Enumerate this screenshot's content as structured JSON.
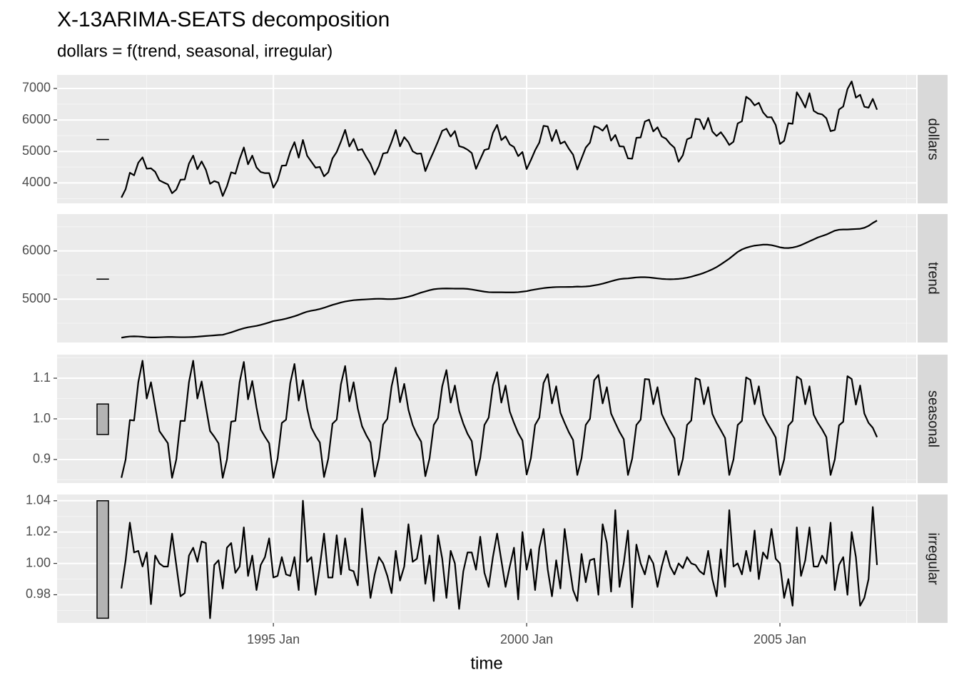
{
  "chart_data": {
    "type": "line",
    "title": "X-13ARIMA-SEATS decomposition",
    "subtitle": "dollars = f(trend, seasonal, irregular)",
    "xlabel": "time",
    "color": "#000000",
    "grid": true,
    "xlim": [
      1990.73,
      2007.69
    ],
    "xticks": [
      {
        "value": 1995,
        "label": "1995 Jan"
      },
      {
        "value": 2000,
        "label": "2000 Jan"
      },
      {
        "value": 2005,
        "label": "2005 Jan"
      }
    ],
    "x": [
      "1992 Jan",
      "1992 Feb",
      "1992 Mar",
      "1992 Apr",
      "1992 May",
      "1992 Jun",
      "1992 Jul",
      "1992 Aug",
      "1992 Sep",
      "1992 Oct",
      "1992 Nov",
      "1992 Dec",
      "1993 Jan",
      "1993 Feb",
      "1993 Mar",
      "1993 Apr",
      "1993 May",
      "1993 Jun",
      "1993 Jul",
      "1993 Aug",
      "1993 Sep",
      "1993 Oct",
      "1993 Nov",
      "1993 Dec",
      "1994 Jan",
      "1994 Feb",
      "1994 Mar",
      "1994 Apr",
      "1994 May",
      "1994 Jun",
      "1994 Jul",
      "1994 Aug",
      "1994 Sep",
      "1994 Oct",
      "1994 Nov",
      "1994 Dec",
      "1995 Jan",
      "1995 Feb",
      "1995 Mar",
      "1995 Apr",
      "1995 May",
      "1995 Jun",
      "1995 Jul",
      "1995 Aug",
      "1995 Sep",
      "1995 Oct",
      "1995 Nov",
      "1995 Dec",
      "1996 Jan",
      "1996 Feb",
      "1996 Mar",
      "1996 Apr",
      "1996 May",
      "1996 Jun",
      "1996 Jul",
      "1996 Aug",
      "1996 Sep",
      "1996 Oct",
      "1996 Nov",
      "1996 Dec",
      "1997 Jan",
      "1997 Feb",
      "1997 Mar",
      "1997 Apr",
      "1997 May",
      "1997 Jun",
      "1997 Jul",
      "1997 Aug",
      "1997 Sep",
      "1997 Oct",
      "1997 Nov",
      "1997 Dec",
      "1998 Jan",
      "1998 Feb",
      "1998 Mar",
      "1998 Apr",
      "1998 May",
      "1998 Jun",
      "1998 Jul",
      "1998 Aug",
      "1998 Sep",
      "1998 Oct",
      "1998 Nov",
      "1998 Dec",
      "1999 Jan",
      "1999 Feb",
      "1999 Mar",
      "1999 Apr",
      "1999 May",
      "1999 Jun",
      "1999 Jul",
      "1999 Aug",
      "1999 Sep",
      "1999 Oct",
      "1999 Nov",
      "1999 Dec",
      "2000 Jan",
      "2000 Feb",
      "2000 Mar",
      "2000 Apr",
      "2000 May",
      "2000 Jun",
      "2000 Jul",
      "2000 Aug",
      "2000 Sep",
      "2000 Oct",
      "2000 Nov",
      "2000 Dec",
      "2001 Jan",
      "2001 Feb",
      "2001 Mar",
      "2001 Apr",
      "2001 May",
      "2001 Jun",
      "2001 Jul",
      "2001 Aug",
      "2001 Sep",
      "2001 Oct",
      "2001 Nov",
      "2001 Dec",
      "2002 Jan",
      "2002 Feb",
      "2002 Mar",
      "2002 Apr",
      "2002 May",
      "2002 Jun",
      "2002 Jul",
      "2002 Aug",
      "2002 Sep",
      "2002 Oct",
      "2002 Nov",
      "2002 Dec",
      "2003 Jan",
      "2003 Feb",
      "2003 Mar",
      "2003 Apr",
      "2003 May",
      "2003 Jun",
      "2003 Jul",
      "2003 Aug",
      "2003 Sep",
      "2003 Oct",
      "2003 Nov",
      "2003 Dec",
      "2004 Jan",
      "2004 Feb",
      "2004 Mar",
      "2004 Apr",
      "2004 May",
      "2004 Jun",
      "2004 Jul",
      "2004 Aug",
      "2004 Sep",
      "2004 Oct",
      "2004 Nov",
      "2004 Dec",
      "2005 Jan",
      "2005 Feb",
      "2005 Mar",
      "2005 Apr",
      "2005 May",
      "2005 Jun",
      "2005 Jul",
      "2005 Aug",
      "2005 Sep",
      "2005 Oct",
      "2005 Nov",
      "2005 Dec",
      "2006 Jan",
      "2006 Feb",
      "2006 Mar",
      "2006 Apr",
      "2006 May",
      "2006 Jun",
      "2006 Jul",
      "2006 Aug",
      "2006 Sep",
      "2006 Oct",
      "2006 Nov",
      "2006 Dec"
    ],
    "panels": [
      {
        "name": "dollars",
        "ylim": [
          3350,
          7430
        ],
        "yticks": [
          4000,
          5000,
          6000,
          7000
        ],
        "values": [
          3534,
          3801,
          4322,
          4241,
          4642,
          4811,
          4451,
          4464,
          4353,
          4082,
          4014,
          3954,
          3672,
          3787,
          4101,
          4109,
          4614,
          4866,
          4435,
          4682,
          4419,
          3971,
          4057,
          4008,
          3584,
          3895,
          4336,
          4292,
          4754,
          5125,
          4590,
          4866,
          4491,
          4345,
          4310,
          4312,
          3851,
          4080,
          4547,
          4554,
          4987,
          5293,
          4802,
          5364,
          4863,
          4674,
          4483,
          4508,
          4209,
          4336,
          4778,
          4983,
          5312,
          5683,
          5157,
          5399,
          5038,
          5072,
          4824,
          4606,
          4264,
          4540,
          4935,
          4960,
          5297,
          5681,
          5163,
          5452,
          5290,
          5004,
          4926,
          4935,
          4375,
          4705,
          5004,
          5319,
          5655,
          5720,
          5472,
          5646,
          5168,
          5129,
          5054,
          4948,
          4446,
          4748,
          5047,
          5083,
          5586,
          5842,
          5359,
          5478,
          5222,
          5140,
          4851,
          4980,
          4439,
          4724,
          5035,
          5283,
          5813,
          5791,
          5330,
          5681,
          5246,
          5314,
          5085,
          4897,
          4425,
          4776,
          5121,
          5281,
          5804,
          5755,
          5660,
          5837,
          5342,
          5523,
          5163,
          5154,
          4779,
          4770,
          5432,
          5444,
          5948,
          6009,
          5636,
          5766,
          5474,
          5404,
          5239,
          5119,
          4672,
          4877,
          5384,
          5443,
          6033,
          6014,
          5705,
          6063,
          5630,
          5490,
          5610,
          5425,
          5205,
          5308,
          5890,
          5958,
          6737,
          6641,
          6463,
          6544,
          6241,
          6087,
          6086,
          5837,
          5237,
          5336,
          5897,
          5877,
          6878,
          6660,
          6395,
          6850,
          6290,
          6205,
          6177,
          6055,
          5643,
          5680,
          6331,
          6426,
          6979,
          7224,
          6708,
          6801,
          6420,
          6390,
          6667,
          6325
        ]
      },
      {
        "name": "trend",
        "ylim": [
          4100,
          6765
        ],
        "yticks": [
          5000,
          6000
        ],
        "values": [
          4200,
          4215,
          4225,
          4228,
          4225,
          4218,
          4210,
          4205,
          4205,
          4208,
          4212,
          4215,
          4215,
          4212,
          4210,
          4210,
          4212,
          4215,
          4220,
          4228,
          4235,
          4242,
          4248,
          4255,
          4260,
          4285,
          4310,
          4340,
          4370,
          4395,
          4415,
          4430,
          4445,
          4465,
          4490,
          4515,
          4545,
          4560,
          4575,
          4595,
          4620,
          4645,
          4675,
          4710,
          4740,
          4760,
          4775,
          4795,
          4820,
          4850,
          4880,
          4905,
          4930,
          4950,
          4965,
          4978,
          4985,
          4990,
          4995,
          5000,
          5005,
          5008,
          5005,
          5000,
          5000,
          5005,
          5015,
          5030,
          5050,
          5075,
          5105,
          5135,
          5160,
          5185,
          5205,
          5215,
          5220,
          5222,
          5220,
          5218,
          5218,
          5218,
          5212,
          5200,
          5185,
          5170,
          5155,
          5145,
          5142,
          5142,
          5142,
          5140,
          5140,
          5140,
          5145,
          5155,
          5165,
          5185,
          5200,
          5215,
          5228,
          5238,
          5245,
          5250,
          5252,
          5252,
          5253,
          5255,
          5260,
          5258,
          5262,
          5270,
          5285,
          5300,
          5320,
          5345,
          5370,
          5395,
          5415,
          5425,
          5430,
          5440,
          5450,
          5455,
          5455,
          5450,
          5440,
          5430,
          5420,
          5415,
          5412,
          5415,
          5420,
          5430,
          5445,
          5465,
          5490,
          5515,
          5545,
          5580,
          5620,
          5665,
          5720,
          5780,
          5840,
          5910,
          5980,
          6030,
          6065,
          6090,
          6110,
          6120,
          6130,
          6130,
          6120,
          6100,
          6075,
          6062,
          6060,
          6070,
          6090,
          6120,
          6160,
          6200,
          6240,
          6280,
          6310,
          6340,
          6380,
          6420,
          6440,
          6445,
          6445,
          6450,
          6455,
          6460,
          6480,
          6520,
          6580,
          6630
        ]
      },
      {
        "name": "seasonal",
        "ylim": [
          0.842,
          1.158
        ],
        "yticks": [
          0.9,
          {
            "value": 1,
            "label": "1.0"
          },
          1.1
        ],
        "values": [
          0.855,
          0.9,
          0.997,
          0.996,
          1.09,
          1.143,
          1.05,
          1.09,
          1.03,
          0.97,
          0.955,
          0.94,
          0.855,
          0.9,
          0.995,
          0.995,
          1.09,
          1.143,
          1.05,
          1.092,
          1.03,
          0.97,
          0.956,
          0.94,
          0.855,
          0.9,
          0.993,
          0.995,
          1.09,
          1.14,
          1.048,
          1.093,
          1.028,
          0.974,
          0.956,
          0.94,
          0.855,
          0.902,
          0.99,
          0.998,
          1.088,
          1.135,
          1.045,
          1.095,
          1.025,
          0.978,
          0.958,
          0.942,
          0.857,
          0.902,
          0.988,
          0.998,
          1.085,
          1.13,
          1.043,
          1.09,
          1.025,
          0.982,
          0.96,
          0.942,
          0.858,
          0.903,
          0.986,
          1.0,
          1.08,
          1.126,
          1.041,
          1.086,
          1.022,
          0.985,
          0.962,
          0.944,
          0.859,
          0.903,
          0.985,
          1.002,
          1.08,
          1.12,
          1.04,
          1.082,
          1.02,
          0.988,
          0.963,
          0.945,
          0.861,
          0.903,
          0.985,
          1.003,
          1.082,
          1.115,
          1.04,
          1.082,
          1.018,
          0.99,
          0.965,
          0.947,
          0.863,
          0.903,
          0.985,
          1.003,
          1.088,
          1.11,
          1.038,
          1.08,
          1.015,
          0.99,
          0.967,
          0.948,
          0.862,
          0.903,
          0.985,
          1.0,
          1.095,
          1.108,
          1.038,
          1.078,
          1.013,
          0.99,
          0.968,
          0.95,
          0.862,
          0.902,
          0.985,
          0.998,
          1.098,
          1.097,
          1.036,
          1.078,
          1.012,
          0.99,
          0.97,
          0.952,
          0.862,
          0.901,
          0.985,
          0.996,
          1.1,
          1.096,
          1.036,
          1.078,
          1.012,
          0.99,
          0.972,
          0.953,
          0.862,
          0.9,
          0.985,
          0.995,
          1.102,
          1.096,
          1.036,
          1.08,
          1.011,
          0.99,
          0.973,
          0.954,
          0.862,
          0.9,
          0.983,
          0.995,
          1.104,
          1.097,
          1.036,
          1.08,
          1.01,
          0.99,
          0.974,
          0.955,
          0.862,
          0.9,
          0.984,
          0.993,
          1.105,
          1.098,
          1.035,
          1.082,
          1.013,
          0.99,
          0.978,
          0.955
        ]
      },
      {
        "name": "irregular",
        "ylim": [
          0.962,
          1.044
        ],
        "yticks": [
          0.98,
          {
            "value": 1,
            "label": "1.00"
          },
          1.02,
          1.04
        ],
        "values": [
          0.984,
          1.002,
          1.026,
          1.007,
          1.008,
          0.998,
          1.007,
          0.974,
          1.005,
          1.0,
          0.998,
          0.998,
          1.019,
          0.999,
          0.979,
          0.981,
          1.005,
          1.01,
          1.001,
          1.014,
          1.013,
          0.965,
          0.999,
          1.002,
          0.984,
          1.01,
          1.013,
          0.994,
          0.998,
          1.023,
          0.992,
          1.005,
          0.983,
          0.999,
          1.004,
          1.016,
          0.991,
          0.992,
          1.004,
          0.993,
          0.992,
          1.004,
          0.983,
          1.04,
          1.001,
          1.004,
          0.98,
          0.998,
          1.019,
          0.991,
          0.991,
          1.018,
          0.993,
          1.016,
          0.996,
          0.995,
          0.986,
          1.035,
          1.006,
          0.978,
          0.993,
          1.004,
          1.0,
          0.992,
          0.981,
          1.008,
          0.989,
          0.998,
          1.025,
          1.001,
          1.003,
          1.018,
          0.987,
          1.005,
          0.976,
          1.018,
          1.003,
          0.978,
          1.008,
          1.0,
          0.971,
          0.995,
          1.007,
          1.007,
          0.996,
          1.017,
          0.994,
          0.985,
          1.004,
          1.019,
          1.002,
          0.985,
          0.998,
          1.01,
          0.977,
          1.02,
          0.996,
          1.009,
          0.983,
          1.01,
          1.022,
          0.996,
          0.979,
          1.002,
          0.984,
          1.022,
          1.001,
          0.983,
          0.976,
          1.006,
          0.988,
          1.002,
          1.003,
          0.98,
          1.025,
          1.013,
          0.982,
          1.034,
          0.985,
          1.0,
          1.021,
          0.972,
          1.012,
          1.0,
          0.993,
          1.005,
          1.0,
          0.985,
          0.998,
          1.008,
          0.998,
          0.993,
          1.0,
          0.997,
          1.004,
          1.0,
          0.999,
          0.995,
          0.993,
          1.008,
          0.99,
          0.979,
          1.009,
          0.985,
          1.034,
          0.998,
          1.0,
          0.993,
          1.008,
          0.995,
          1.021,
          0.99,
          1.007,
          1.003,
          1.022,
          1.003,
          1.0,
          0.978,
          0.99,
          0.973,
          1.023,
          0.992,
          1.002,
          1.023,
          0.998,
          0.998,
          1.005,
          1.0,
          1.026,
          0.983,
          0.999,
          1.004,
          0.98,
          1.02,
          1.004,
          0.973,
          0.978,
          0.99,
          1.036,
          0.999
        ]
      }
    ]
  }
}
